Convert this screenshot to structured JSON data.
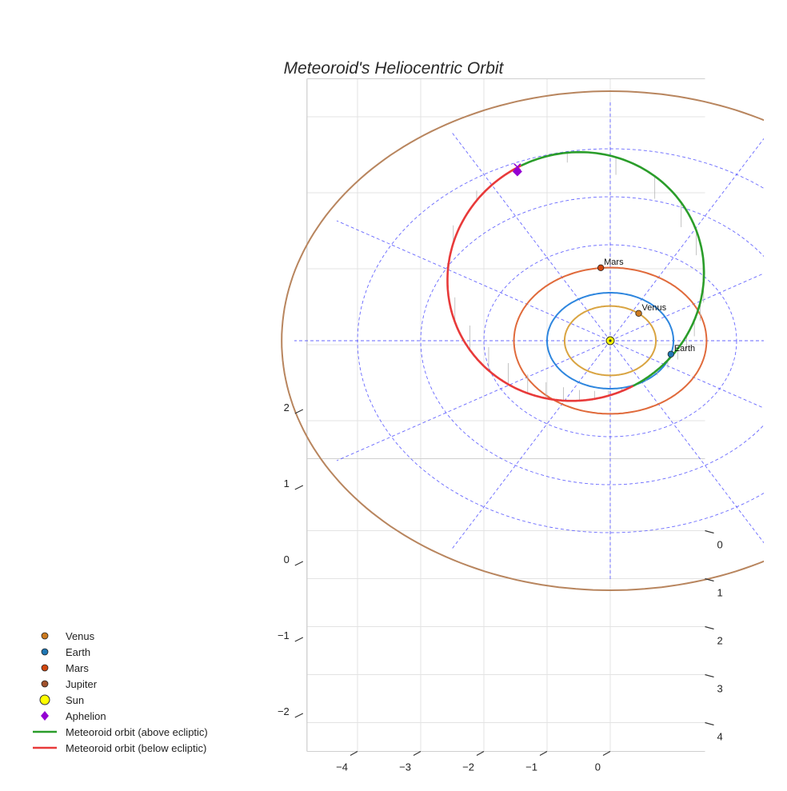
{
  "chart_data": {
    "type": "line",
    "title": "Meteoroid's Heliocentric Orbit",
    "xlabel": "",
    "ylabel": "",
    "zlabel": "",
    "x_ticks": [
      -4,
      -3,
      -2,
      -1,
      0
    ],
    "y_ticks": [
      0,
      1,
      2,
      3,
      4
    ],
    "z_ticks": [
      2,
      1,
      0,
      -1,
      -2
    ],
    "xlim": [
      -4.8,
      1.5
    ],
    "ylim": [
      -1.5,
      4.6
    ],
    "zlim": [
      -2.5,
      2.5
    ],
    "grid": true,
    "legend_position": "bottom-left",
    "planets": [
      {
        "name": "Venus",
        "label": "Venus",
        "semi_major_axis_au": 0.723,
        "position": [
          0.45,
          -0.57,
          0
        ],
        "color": "#d9a441",
        "marker_color": "#cc7a1f"
      },
      {
        "name": "Earth",
        "label": "Earth",
        "semi_major_axis_au": 1.0,
        "position": [
          0.96,
          0.28,
          0
        ],
        "color": "#2e86de",
        "marker_color": "#1f77b4"
      },
      {
        "name": "Mars",
        "label": "Mars",
        "semi_major_axis_au": 1.524,
        "position": [
          -0.15,
          -1.52,
          0
        ],
        "color": "#e06a3b",
        "marker_color": "#d1460f"
      },
      {
        "name": "Jupiter",
        "label": "",
        "semi_major_axis_au": 5.2,
        "position": null,
        "color": "#b8855e",
        "marker_color": "#a0522d"
      }
    ],
    "sun": {
      "position": [
        0,
        0,
        0
      ],
      "color": "#ffff00"
    },
    "aphelion": {
      "position": [
        -1.47,
        -3.62,
        -0.06
      ],
      "color": "#9400d3"
    },
    "ecliptic_grid": {
      "radii": [
        1,
        2,
        3,
        4
      ],
      "spokes": 12,
      "color": "#4d4dff"
    },
    "meteoroid_orbit": {
      "semi_major_axis_au": 2.45,
      "eccentricity": 0.59,
      "inclination_deg": 9.5,
      "perihelion_direction": [
        0.38,
        0.93
      ],
      "above_color": "#2a9d2a",
      "below_color": "#e83a3a"
    },
    "series": [
      {
        "name": "Meteoroid orbit (above ecliptic)",
        "color": "#2a9d2a"
      },
      {
        "name": "Meteoroid orbit (below ecliptic)",
        "color": "#e83a3a"
      }
    ]
  },
  "legend": {
    "items": [
      {
        "label": "Venus",
        "kind": "dot",
        "color": "#cc7a1f"
      },
      {
        "label": "Earth",
        "kind": "dot",
        "color": "#1f77b4"
      },
      {
        "label": "Mars",
        "kind": "dot",
        "color": "#d1460f"
      },
      {
        "label": "Jupiter",
        "kind": "dot",
        "color": "#a0522d"
      },
      {
        "label": "Sun",
        "kind": "sun",
        "color": "#ffff00"
      },
      {
        "label": "Aphelion",
        "kind": "diamond",
        "color": "#9400d3"
      },
      {
        "label": "Meteoroid orbit (above ecliptic)",
        "kind": "line",
        "color": "#2a9d2a"
      },
      {
        "label": "Meteoroid orbit (below ecliptic)",
        "kind": "line",
        "color": "#e83a3a"
      }
    ]
  }
}
